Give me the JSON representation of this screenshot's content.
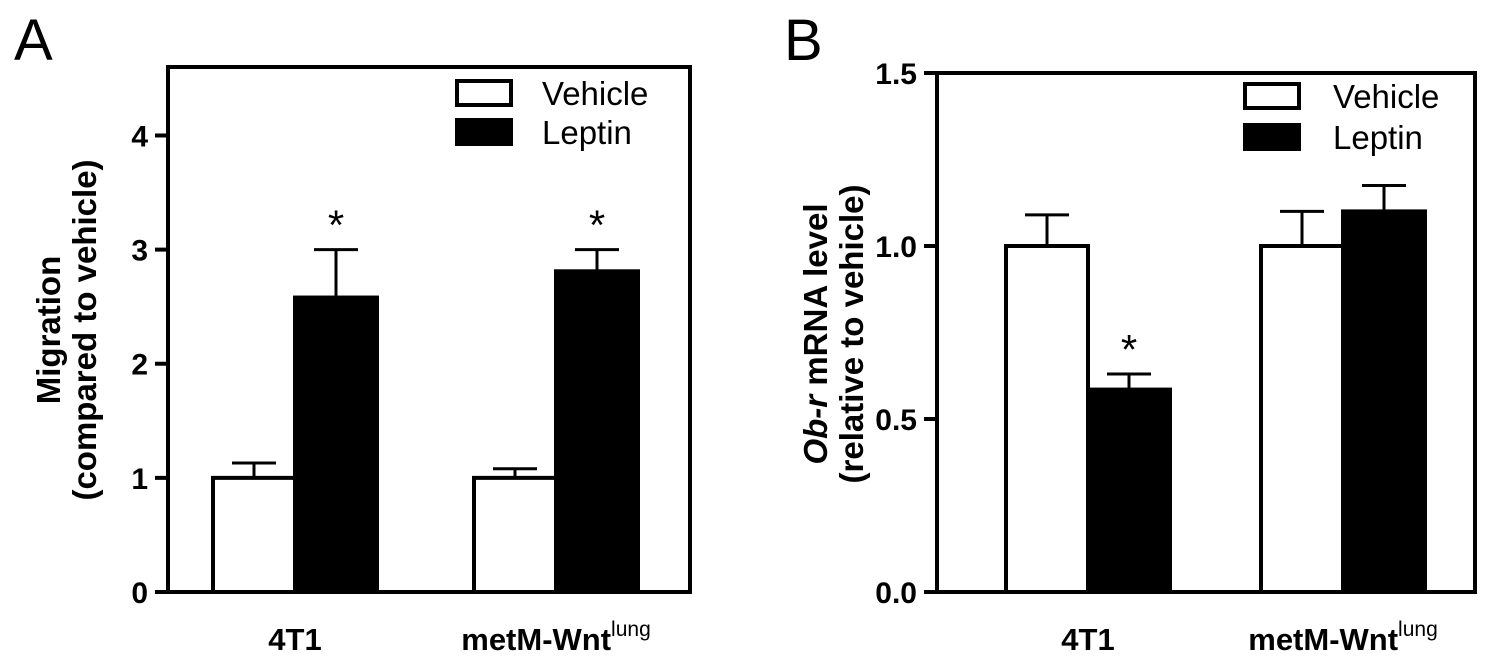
{
  "chart_data": [
    {
      "panel": "A",
      "type": "bar",
      "categories": [
        {
          "main": "4T1",
          "sup": ""
        },
        {
          "main": "metM-Wnt",
          "sup": "lung"
        }
      ],
      "series": [
        {
          "name": "Vehicle",
          "color": "#ffffff",
          "values": [
            1.0,
            1.0
          ],
          "errors": [
            0.13,
            0.08
          ],
          "annotations": [
            "",
            ""
          ]
        },
        {
          "name": "Leptin",
          "color": "#000000",
          "values": [
            2.58,
            2.81
          ],
          "errors": [
            0.42,
            0.19
          ],
          "annotations": [
            "*",
            "*"
          ]
        }
      ],
      "ylabel_line1": "Migration",
      "ylabel_line2": "(compared to vehicle)",
      "ylim": [
        0,
        4.6
      ],
      "yticks": [
        0,
        1,
        2,
        3,
        4
      ],
      "ytick_labels": [
        "0",
        "1",
        "2",
        "3",
        "4"
      ],
      "legend_position": "top-right"
    },
    {
      "panel": "B",
      "type": "bar",
      "categories": [
        {
          "main": "4T1",
          "sup": ""
        },
        {
          "main": "metM-Wnt",
          "sup": "lung"
        }
      ],
      "series": [
        {
          "name": "Vehicle",
          "color": "#ffffff",
          "values": [
            1.0,
            1.0
          ],
          "errors": [
            0.09,
            0.1
          ],
          "annotations": [
            "",
            ""
          ]
        },
        {
          "name": "Leptin",
          "color": "#000000",
          "values": [
            0.585,
            1.1
          ],
          "errors": [
            0.045,
            0.075
          ],
          "annotations": [
            "*",
            ""
          ]
        }
      ],
      "ylabel_line1_italic": "Ob-r",
      "ylabel_line1_rest": " mRNA level",
      "ylabel_line2": "(relative to vehicle)",
      "ylim": [
        0,
        1.5
      ],
      "yticks": [
        0,
        0.5,
        1.0,
        1.5
      ],
      "ytick_labels": [
        "0.0",
        "0.5",
        "1.0",
        "1.5"
      ],
      "legend_position": "top-right"
    }
  ]
}
